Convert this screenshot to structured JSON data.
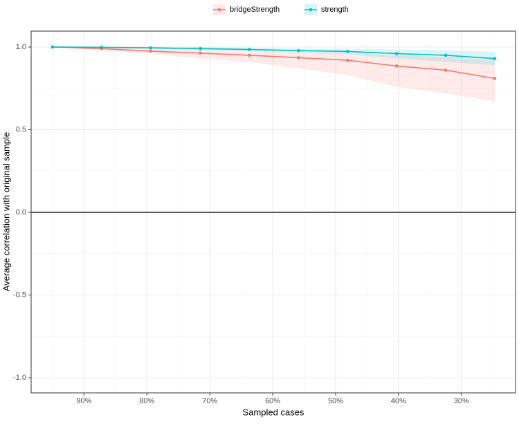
{
  "chart_data": {
    "type": "line",
    "x_label": "Sampled cases",
    "y_label": "Average correlation with original sample",
    "x": [
      95,
      87.2,
      79.4,
      71.5,
      63.7,
      55.9,
      48.1,
      40.3,
      32.5,
      24.7
    ],
    "series": [
      {
        "name": "bridgeStrength",
        "color": "#F8766D",
        "values": [
          1.0,
          0.99,
          0.975,
          0.963,
          0.95,
          0.935,
          0.92,
          0.885,
          0.86,
          0.81
        ],
        "lower": [
          1.0,
          0.98,
          0.96,
          0.93,
          0.91,
          0.87,
          0.83,
          0.76,
          0.72,
          0.67
        ],
        "upper": [
          1.0,
          1.0,
          0.99,
          0.98,
          0.975,
          0.97,
          0.96,
          0.95,
          0.94,
          0.92
        ]
      },
      {
        "name": "strength",
        "color": "#00BFC4",
        "values": [
          1.0,
          0.998,
          0.995,
          0.99,
          0.985,
          0.978,
          0.973,
          0.96,
          0.95,
          0.93
        ],
        "lower": [
          1.0,
          0.995,
          0.99,
          0.98,
          0.975,
          0.965,
          0.955,
          0.93,
          0.91,
          0.89
        ],
        "upper": [
          1.0,
          1.0,
          1.0,
          1.0,
          0.995,
          0.99,
          0.99,
          0.985,
          0.98,
          0.97
        ]
      }
    ],
    "xlim": [
      98.4,
      21.4
    ],
    "ylim": [
      -1.092,
      1.096
    ],
    "xticks": [
      {
        "value": 90,
        "label": "90%"
      },
      {
        "value": 80,
        "label": "80%"
      },
      {
        "value": 70,
        "label": "70%"
      },
      {
        "value": 60,
        "label": "60%"
      },
      {
        "value": 50,
        "label": "50%"
      },
      {
        "value": 40,
        "label": "40%"
      },
      {
        "value": 30,
        "label": "30%"
      }
    ],
    "yticks": [
      {
        "value": -1,
        "label": "-1.0"
      },
      {
        "value": -0.5,
        "label": "-0.5"
      },
      {
        "value": 0,
        "label": "0.0"
      },
      {
        "value": 0.5,
        "label": "0.5"
      },
      {
        "value": 1,
        "label": "1.0"
      }
    ],
    "minor_xticks": [
      95,
      85,
      75,
      65,
      55,
      45,
      35,
      25
    ],
    "minor_yticks": [
      -0.75,
      -0.25,
      0.25,
      0.75
    ],
    "hline": 0,
    "grid": true,
    "legend_position": "top"
  }
}
